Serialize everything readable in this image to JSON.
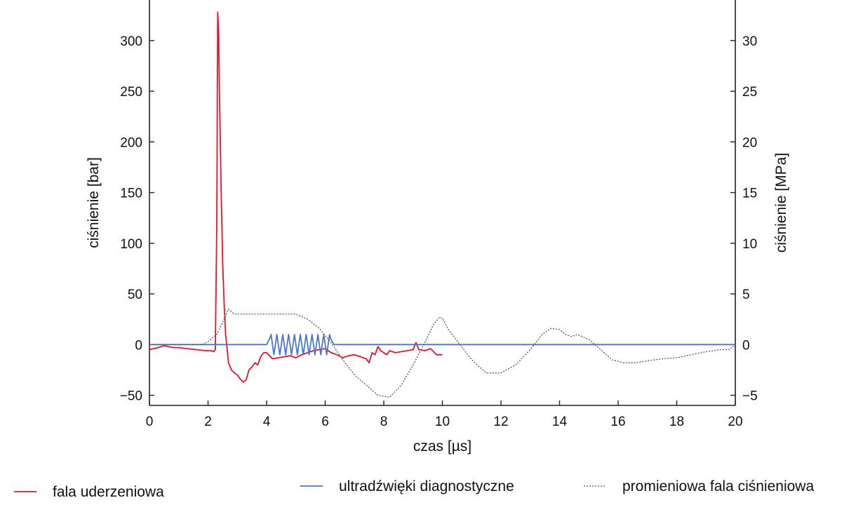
{
  "chart_data": {
    "type": "line",
    "xlabel": "czas [µs]",
    "ylabel_left": "ciśnienie [bar]",
    "ylabel_right": "ciśnienie [MPa]",
    "xlim": [
      0,
      20
    ],
    "ylim_left": [
      -60,
      340
    ],
    "ylim_right": [
      -6,
      34
    ],
    "x_ticks": [
      0,
      2,
      4,
      6,
      8,
      10,
      12,
      14,
      16,
      18,
      20
    ],
    "y_ticks_left": [
      -50,
      0,
      50,
      100,
      150,
      200,
      250,
      300
    ],
    "y_ticks_right": [
      -5,
      0,
      5,
      10,
      15,
      20,
      25,
      30
    ],
    "y_tick_labels_left": [
      "−50",
      "0",
      "50",
      "100",
      "150",
      "200",
      "250",
      "300"
    ],
    "y_tick_labels_right": [
      "−5",
      "0",
      "5",
      "10",
      "15",
      "20",
      "25",
      "30"
    ],
    "grid": false,
    "legend_position": "bottom",
    "series": [
      {
        "name": "fala uderzeniowa",
        "axis": "left",
        "color": "#e8112d",
        "style": "solid",
        "x": [
          0,
          0.3,
          0.5,
          0.8,
          1.0,
          1.3,
          1.6,
          1.9,
          2.1,
          2.2,
          2.25,
          2.3,
          2.33,
          2.36,
          2.4,
          2.45,
          2.5,
          2.55,
          2.6,
          2.7,
          2.8,
          2.9,
          3.0,
          3.1,
          3.2,
          3.3,
          3.4,
          3.5,
          3.6,
          3.7,
          3.8,
          3.9,
          4.0,
          4.2,
          4.4,
          4.6,
          4.8,
          5.0,
          5.2,
          5.4,
          5.6,
          5.8,
          6.0,
          6.2,
          6.4,
          6.6,
          6.8,
          7.0,
          7.2,
          7.4,
          7.5,
          7.6,
          7.7,
          7.8,
          7.9,
          8.0,
          8.1,
          8.2,
          8.4,
          8.6,
          8.8,
          9.0,
          9.1,
          9.2,
          9.4,
          9.6,
          9.8,
          10.0
        ],
        "y": [
          -5,
          -3,
          -1,
          -3,
          -3,
          -4,
          -5,
          -6,
          -6,
          -7,
          -5,
          120,
          328,
          310,
          230,
          150,
          80,
          40,
          10,
          -18,
          -25,
          -28,
          -30,
          -34,
          -37,
          -35,
          -25,
          -22,
          -18,
          -20,
          -12,
          -8,
          -8,
          -14,
          -13,
          -12,
          -11,
          -13,
          -10,
          -8,
          -6,
          -5,
          -4,
          -8,
          -10,
          -13,
          -11,
          -10,
          -12,
          -14,
          -18,
          -8,
          -10,
          -2,
          -6,
          -8,
          -10,
          -6,
          -8,
          -7,
          -6,
          -5,
          2,
          -5,
          -6,
          -4,
          -10,
          -10
        ]
      },
      {
        "name": "ultradźwięki diagnostyczne",
        "axis": "right",
        "color": "#4a78c8",
        "style": "solid",
        "x": [
          0,
          4.0,
          4.1,
          4.15,
          4.25,
          4.35,
          4.45,
          4.55,
          4.65,
          4.75,
          4.85,
          4.95,
          5.05,
          5.15,
          5.25,
          5.35,
          5.45,
          5.55,
          5.65,
          5.75,
          5.85,
          5.95,
          6.05,
          6.15,
          6.2,
          6.3,
          20
        ],
        "y": [
          0,
          0,
          0.6,
          1.0,
          -1.0,
          1.0,
          -1.0,
          1.0,
          -1.0,
          1.0,
          -1.0,
          1.0,
          -1.0,
          1.0,
          -1.0,
          1.0,
          -1.0,
          1.0,
          -1.0,
          1.0,
          -1.0,
          1.0,
          -1.0,
          1.0,
          0.5,
          0,
          0
        ]
      },
      {
        "name": "promieniowa fala ciśnieniowa",
        "axis": "right",
        "color": "#555555",
        "style": "dotted",
        "x": [
          0,
          1.0,
          1.8,
          2.0,
          2.3,
          2.5,
          2.7,
          2.9,
          3.0,
          5.0,
          5.4,
          5.8,
          6.2,
          6.6,
          7.0,
          7.4,
          7.8,
          8.2,
          8.6,
          9.0,
          9.4,
          9.7,
          9.9,
          10.0,
          10.2,
          10.6,
          11.0,
          11.5,
          12.0,
          12.5,
          13.0,
          13.4,
          13.7,
          14.0,
          14.2,
          14.4,
          14.6,
          15.0,
          15.4,
          15.8,
          16.2,
          16.6,
          17.0,
          17.5,
          18.0,
          18.5,
          19.0,
          19.5,
          19.8,
          20.0
        ],
        "y": [
          0,
          0,
          0,
          0.3,
          1.0,
          2.2,
          3.5,
          3.0,
          3.0,
          3.0,
          2.5,
          1.6,
          0.2,
          -1.5,
          -3.0,
          -4.0,
          -5.0,
          -5.2,
          -4.0,
          -2.0,
          0.2,
          2.0,
          2.7,
          2.6,
          1.5,
          0,
          -1.5,
          -2.8,
          -2.8,
          -2.0,
          -0.5,
          1.0,
          1.6,
          1.5,
          1.0,
          0.8,
          1.0,
          0.5,
          -0.5,
          -1.5,
          -1.8,
          -1.8,
          -1.6,
          -1.4,
          -1.3,
          -1.0,
          -0.7,
          -0.5,
          -0.5,
          0
        ]
      }
    ]
  }
}
